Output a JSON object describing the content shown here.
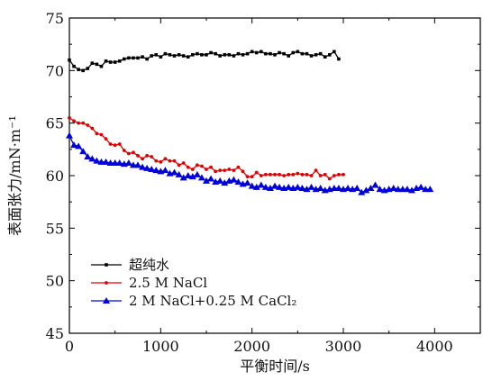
{
  "chart_data": {
    "type": "line",
    "title": "",
    "xlabel": "平衡时间/s",
    "ylabel": "表面张力/mN·m⁻¹",
    "xlim": [
      0,
      4500
    ],
    "ylim": [
      45,
      75
    ],
    "x_ticks": [
      0,
      1000,
      2000,
      3000,
      4000
    ],
    "y_ticks": [
      45,
      50,
      55,
      60,
      65,
      70,
      75
    ],
    "x_tick_labels": [
      "0",
      "1000",
      "2000",
      "3000",
      "4000"
    ],
    "y_tick_labels": [
      "45",
      "50",
      "55",
      "60",
      "65",
      "70",
      "75"
    ],
    "grid": false,
    "legend_position": "bottom-left",
    "series": [
      {
        "name": "超纯水",
        "color": "#000000",
        "marker": "square",
        "x": [
          0,
          50,
          100,
          150,
          200,
          250,
          300,
          350,
          400,
          450,
          500,
          550,
          600,
          650,
          700,
          750,
          800,
          850,
          900,
          950,
          1000,
          1050,
          1100,
          1150,
          1200,
          1250,
          1300,
          1350,
          1400,
          1450,
          1500,
          1550,
          1600,
          1650,
          1700,
          1750,
          1800,
          1850,
          1900,
          1950,
          2000,
          2050,
          2100,
          2150,
          2200,
          2250,
          2300,
          2350,
          2400,
          2450,
          2500,
          2550,
          2600,
          2650,
          2700,
          2750,
          2800,
          2850,
          2900,
          2950
        ],
        "y": [
          71.0,
          70.4,
          70.1,
          70.0,
          70.2,
          70.7,
          70.6,
          70.4,
          70.9,
          70.8,
          70.8,
          70.9,
          71.1,
          71.2,
          71.2,
          71.2,
          71.3,
          71.1,
          71.4,
          71.5,
          71.3,
          71.6,
          71.5,
          71.4,
          71.5,
          71.4,
          71.3,
          71.5,
          71.6,
          71.5,
          71.5,
          71.7,
          71.6,
          71.4,
          71.5,
          71.5,
          71.4,
          71.6,
          71.5,
          71.6,
          71.8,
          71.7,
          71.8,
          71.6,
          71.6,
          71.5,
          71.7,
          71.6,
          71.4,
          71.7,
          71.8,
          71.6,
          71.6,
          71.4,
          71.5,
          71.6,
          71.3,
          71.5,
          71.8,
          71.1
        ]
      },
      {
        "name": "2.5 M NaCl",
        "color": "#e00000",
        "marker": "circle",
        "x": [
          0,
          50,
          100,
          150,
          200,
          250,
          300,
          350,
          400,
          450,
          500,
          550,
          600,
          650,
          700,
          750,
          800,
          850,
          900,
          950,
          1000,
          1050,
          1100,
          1150,
          1200,
          1250,
          1300,
          1350,
          1400,
          1450,
          1500,
          1550,
          1600,
          1650,
          1700,
          1750,
          1800,
          1850,
          1900,
          1950,
          2000,
          2050,
          2100,
          2150,
          2200,
          2250,
          2300,
          2350,
          2400,
          2450,
          2500,
          2550,
          2600,
          2650,
          2700,
          2750,
          2800,
          2850,
          2900,
          2950,
          3000
        ],
        "y": [
          65.5,
          65.2,
          65.0,
          65.0,
          64.8,
          64.5,
          64.0,
          63.9,
          63.5,
          63.0,
          62.9,
          63.0,
          62.4,
          62.1,
          62.2,
          61.9,
          61.6,
          61.9,
          61.8,
          61.4,
          61.3,
          61.6,
          61.4,
          61.4,
          61.0,
          61.2,
          60.8,
          60.6,
          61.0,
          60.9,
          60.6,
          60.8,
          60.4,
          60.5,
          60.5,
          60.6,
          60.5,
          60.8,
          60.4,
          59.9,
          59.9,
          60.3,
          60.0,
          60.1,
          60.1,
          60.1,
          60.1,
          60.0,
          60.1,
          60.1,
          60.2,
          60.1,
          60.1,
          60.0,
          60.5,
          60.0,
          60.1,
          59.7,
          60.0,
          60.1,
          60.1
        ]
      },
      {
        "name": "2 M NaCl+0.25 M CaCl₂",
        "color": "#0000dd",
        "marker": "triangle",
        "x": [
          0,
          50,
          100,
          150,
          200,
          250,
          300,
          350,
          400,
          450,
          500,
          550,
          600,
          650,
          700,
          750,
          800,
          850,
          900,
          950,
          1000,
          1050,
          1100,
          1150,
          1200,
          1250,
          1300,
          1350,
          1400,
          1450,
          1500,
          1550,
          1600,
          1650,
          1700,
          1750,
          1800,
          1850,
          1900,
          1950,
          2000,
          2050,
          2100,
          2150,
          2200,
          2250,
          2300,
          2350,
          2400,
          2450,
          2500,
          2550,
          2600,
          2650,
          2700,
          2750,
          2800,
          2850,
          2900,
          2950,
          3000,
          3050,
          3100,
          3150,
          3200,
          3250,
          3300,
          3350,
          3400,
          3450,
          3500,
          3550,
          3600,
          3650,
          3700,
          3750,
          3800,
          3850,
          3900,
          3950
        ],
        "y": [
          63.8,
          62.9,
          62.8,
          62.3,
          61.8,
          61.6,
          61.4,
          61.3,
          61.3,
          61.2,
          61.2,
          61.2,
          61.1,
          61.2,
          61.0,
          61.0,
          60.8,
          60.7,
          60.6,
          60.5,
          60.4,
          60.5,
          60.2,
          60.3,
          60.1,
          59.8,
          60.0,
          59.9,
          60.1,
          59.8,
          59.5,
          59.7,
          59.4,
          59.5,
          59.3,
          59.5,
          59.6,
          59.4,
          59.2,
          59.3,
          59.0,
          58.9,
          59.1,
          58.9,
          58.8,
          59.0,
          58.9,
          58.8,
          58.9,
          58.8,
          58.9,
          58.8,
          58.7,
          58.9,
          58.7,
          58.8,
          58.6,
          58.7,
          58.8,
          58.8,
          58.7,
          58.8,
          58.7,
          58.8,
          58.4,
          58.6,
          58.8,
          59.1,
          58.7,
          58.6,
          58.7,
          58.8,
          58.7,
          58.7,
          58.7,
          58.6,
          58.8,
          58.9,
          58.7,
          58.7
        ]
      }
    ]
  }
}
